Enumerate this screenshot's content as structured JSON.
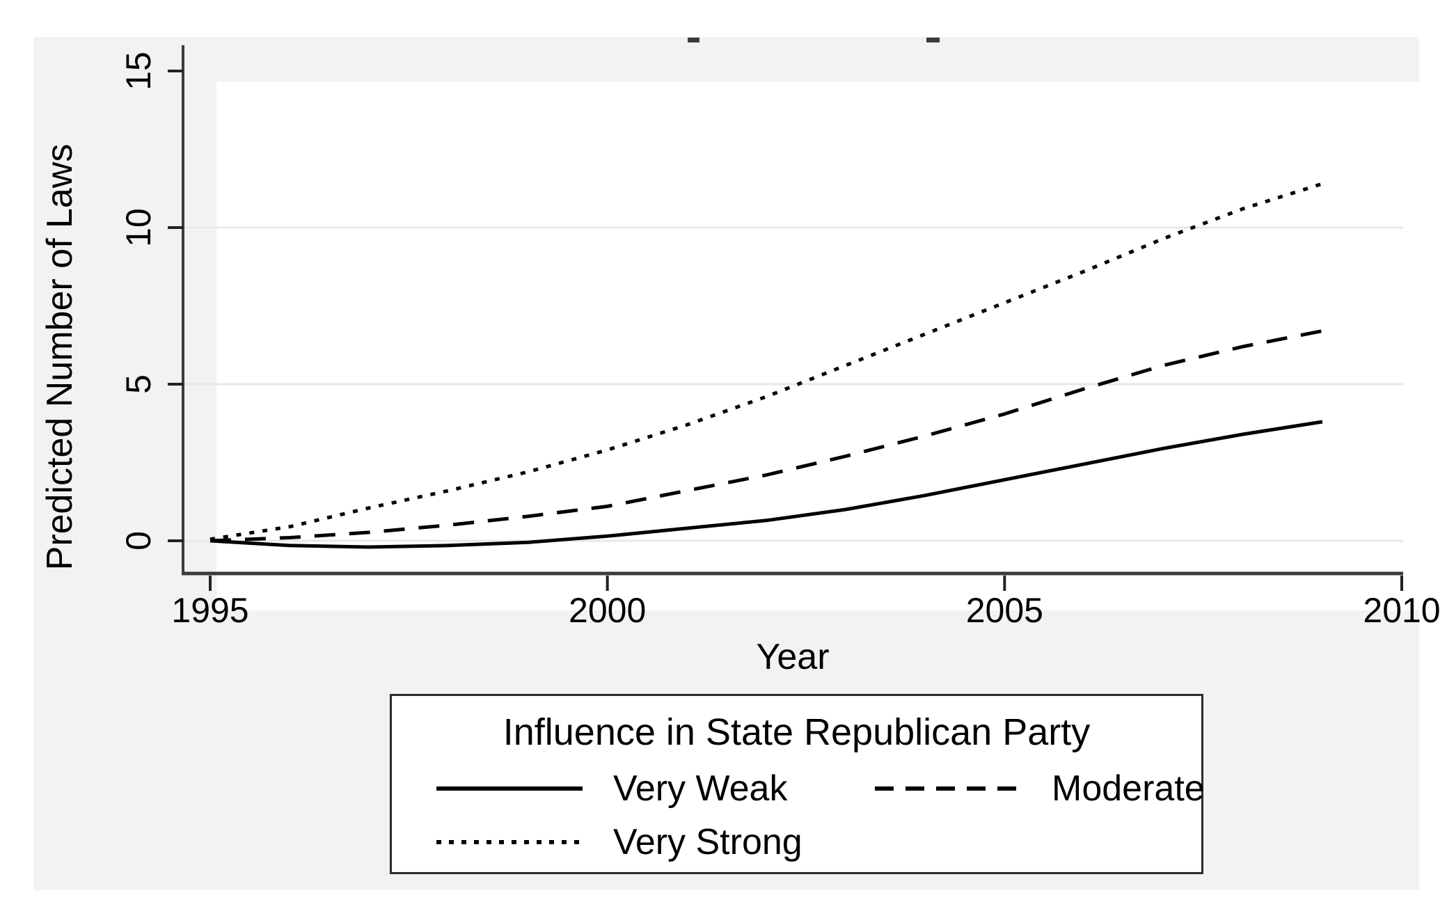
{
  "colors": {
    "page_background": "#ffffff",
    "figure_background": "#f2f2f2",
    "plot_background": "#ffffff",
    "gridline": "#e8e8e8",
    "axis": "#3a3a3a",
    "tick": "#222222",
    "series_line": "#000000",
    "legend_border": "#2b2b2b",
    "text": "#000000"
  },
  "chart_data": {
    "type": "line",
    "title": "",
    "xlabel": "Year",
    "ylabel": "Predicted Number of Laws",
    "xlim": [
      1995,
      2010
    ],
    "ylim": [
      -1.0,
      15.8
    ],
    "x_ticks": [
      1995,
      2000,
      2005,
      2010
    ],
    "y_ticks": [
      0,
      5,
      10,
      15
    ],
    "grid_y": [
      0,
      5,
      10
    ],
    "grid": "horizontal-only",
    "x": [
      1995,
      1996,
      1997,
      1998,
      1999,
      2000,
      2001,
      2002,
      2003,
      2004,
      2005,
      2006,
      2007,
      2008,
      2009
    ],
    "series": [
      {
        "name": "Very Weak",
        "style": "solid",
        "values": [
          0.0,
          -0.15,
          -0.2,
          -0.15,
          -0.05,
          0.15,
          0.4,
          0.65,
          1.0,
          1.45,
          1.95,
          2.45,
          2.95,
          3.4,
          3.8
        ]
      },
      {
        "name": "Moderate",
        "style": "dashed",
        "values": [
          0.0,
          0.1,
          0.27,
          0.5,
          0.78,
          1.1,
          1.6,
          2.1,
          2.7,
          3.35,
          4.05,
          4.85,
          5.6,
          6.2,
          6.7
        ]
      },
      {
        "name": "Very Strong",
        "style": "dotted",
        "values": [
          0.05,
          0.45,
          1.05,
          1.6,
          2.2,
          2.9,
          3.7,
          4.6,
          5.6,
          6.6,
          7.6,
          8.6,
          9.65,
          10.6,
          11.4
        ]
      }
    ],
    "legend": {
      "title": "Influence in State Republican Party",
      "position": "below",
      "entries": [
        {
          "label": "Very Weak",
          "style": "solid"
        },
        {
          "label": "Moderate",
          "style": "dashed"
        },
        {
          "label": "Very Strong",
          "style": "dotted"
        }
      ]
    }
  }
}
